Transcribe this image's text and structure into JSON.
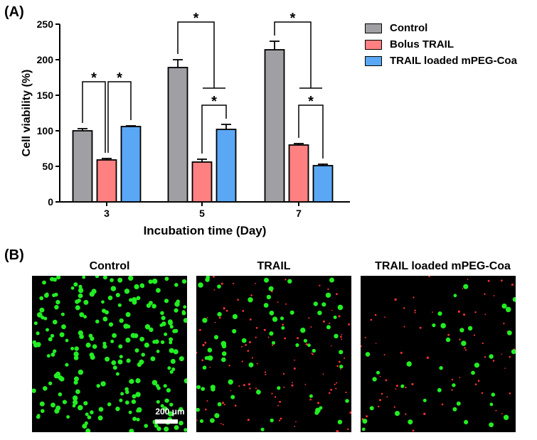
{
  "panel_a_label": "(A)",
  "panel_b_label": "(B)",
  "chart_data": {
    "type": "bar",
    "xlabel": "Incubation time (Day)",
    "ylabel": "Cell viability (%)",
    "ylim": [
      0,
      250
    ],
    "yticks": [
      0,
      50,
      100,
      150,
      200,
      250
    ],
    "categories": [
      "3",
      "5",
      "7"
    ],
    "series": [
      {
        "name": "Control",
        "color": "#a0a0a4",
        "values": [
          100,
          189,
          214
        ],
        "errors": [
          3,
          11,
          12
        ]
      },
      {
        "name": "Bolus TRAIL",
        "color": "#ff8080",
        "values": [
          59,
          56,
          80
        ],
        "errors": [
          2,
          4,
          2
        ]
      },
      {
        "name": "TRAIL loaded mPEG-Coa",
        "color": "#5aa7f5",
        "values": [
          106,
          102,
          51
        ],
        "errors": [
          1,
          7,
          2
        ]
      }
    ],
    "significance": [
      {
        "group": 0,
        "from": 0,
        "to": 1,
        "label": "*"
      },
      {
        "group": 0,
        "from": 1,
        "to": 2,
        "label": "*"
      },
      {
        "group": 1,
        "from": 0,
        "to": "1-2",
        "label": "*"
      },
      {
        "group": 1,
        "from": 1,
        "to": 2,
        "label": "*"
      },
      {
        "group": 2,
        "from": 0,
        "to": "1-2",
        "label": "*"
      },
      {
        "group": 2,
        "from": 1,
        "to": 2,
        "label": "*"
      }
    ],
    "legend_position": "top-right",
    "grid": false
  },
  "images": {
    "titles": [
      "Control",
      "TRAIL",
      "TRAIL loaded mPEG-Coa"
    ],
    "scale_bar": "200 μm",
    "green_color": "#22ee22",
    "red_color": "#ff3333"
  }
}
